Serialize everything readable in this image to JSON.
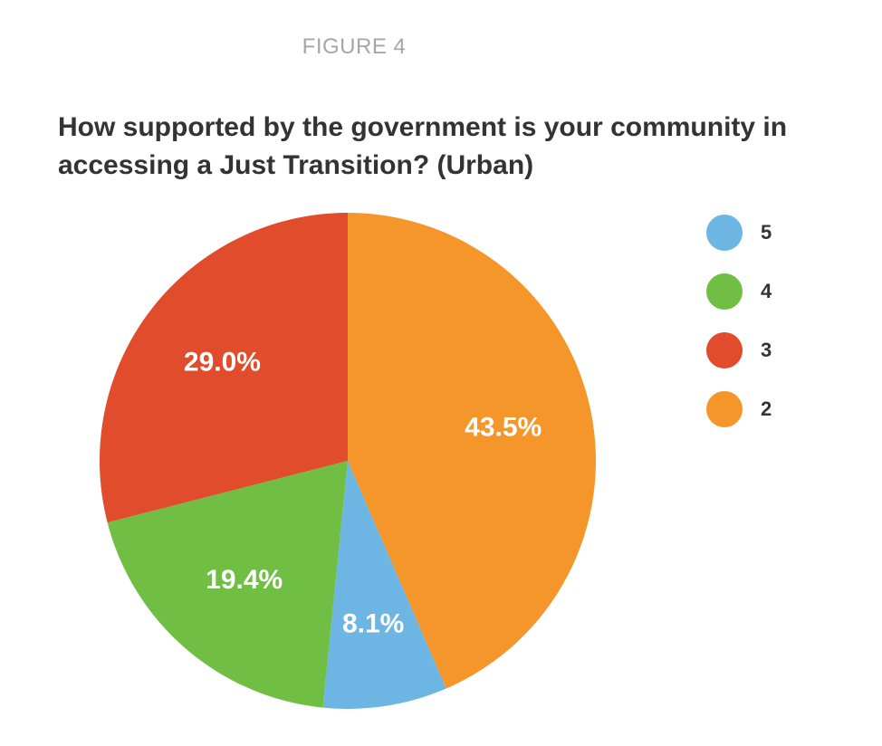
{
  "header": {
    "figure_label": "FIGURE 4"
  },
  "chart_data": {
    "type": "pie",
    "title": "How supported by the government is your community in accessing a Just Transition? (Urban)",
    "slices": [
      {
        "label": "2",
        "value": 43.5,
        "display": "43.5%",
        "color": "#f5962a"
      },
      {
        "label": "5",
        "value": 8.1,
        "display": "8.1%",
        "color": "#6db5e3"
      },
      {
        "label": "4",
        "value": 19.4,
        "display": "19.4%",
        "color": "#70bf44"
      },
      {
        "label": "3",
        "value": 29.0,
        "display": "29.0%",
        "color": "#e04c2c"
      }
    ],
    "legend": {
      "position": "right",
      "items": [
        {
          "label": "5",
          "color": "#6db5e3"
        },
        {
          "label": "4",
          "color": "#70bf44"
        },
        {
          "label": "3",
          "color": "#e04c2c"
        },
        {
          "label": "2",
          "color": "#f5962a"
        }
      ]
    }
  }
}
